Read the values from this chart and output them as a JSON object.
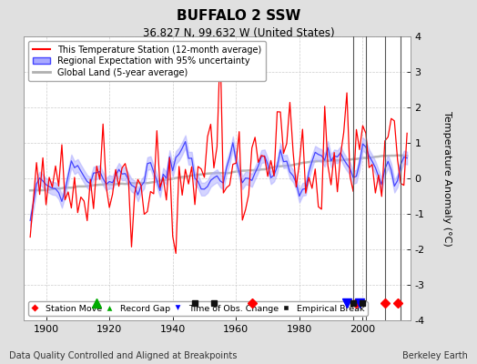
{
  "title": "BUFFALO 2 SSW",
  "subtitle": "36.827 N, 99.632 W (United States)",
  "footer_left": "Data Quality Controlled and Aligned at Breakpoints",
  "footer_right": "Berkeley Earth",
  "year_start": 1895,
  "year_end": 2014,
  "ylim": [
    -4,
    4
  ],
  "yticks": [
    -4,
    -3,
    -2,
    -1,
    0,
    1,
    2,
    3,
    4
  ],
  "ylabel": "Temperature Anomaly (°C)",
  "xticks": [
    1900,
    1920,
    1940,
    1960,
    1980,
    2000
  ],
  "bg_color": "#e0e0e0",
  "plot_bg_color": "#ffffff",
  "station_color": "#ff0000",
  "regional_color": "#4444ff",
  "regional_fill_color": "#aaaaff",
  "global_color": "#b0b0b0",
  "station_noise": 1.1,
  "regional_noise": 0.55,
  "regional_unc": 0.18,
  "global_smooth": 15,
  "vertical_lines": [
    1997,
    2001,
    2007,
    2012
  ],
  "vertical_line_color": "#555555",
  "vertical_line_lw": 0.8,
  "markers": [
    {
      "type": "station_move",
      "years": [
        1965,
        1998,
        2007,
        2011
      ],
      "color": "#ff0000",
      "marker": "D",
      "size": 5
    },
    {
      "type": "record_gap",
      "years": [
        1916
      ],
      "color": "#00aa00",
      "marker": "^",
      "size": 7
    },
    {
      "type": "obs_change",
      "years": [
        1995,
        1999
      ],
      "color": "#0000ff",
      "marker": "v",
      "size": 7
    },
    {
      "type": "empirical_break",
      "years": [
        1947,
        1953,
        1997,
        2000
      ],
      "color": "#111111",
      "marker": "s",
      "size": 5
    }
  ],
  "seed": 12345
}
